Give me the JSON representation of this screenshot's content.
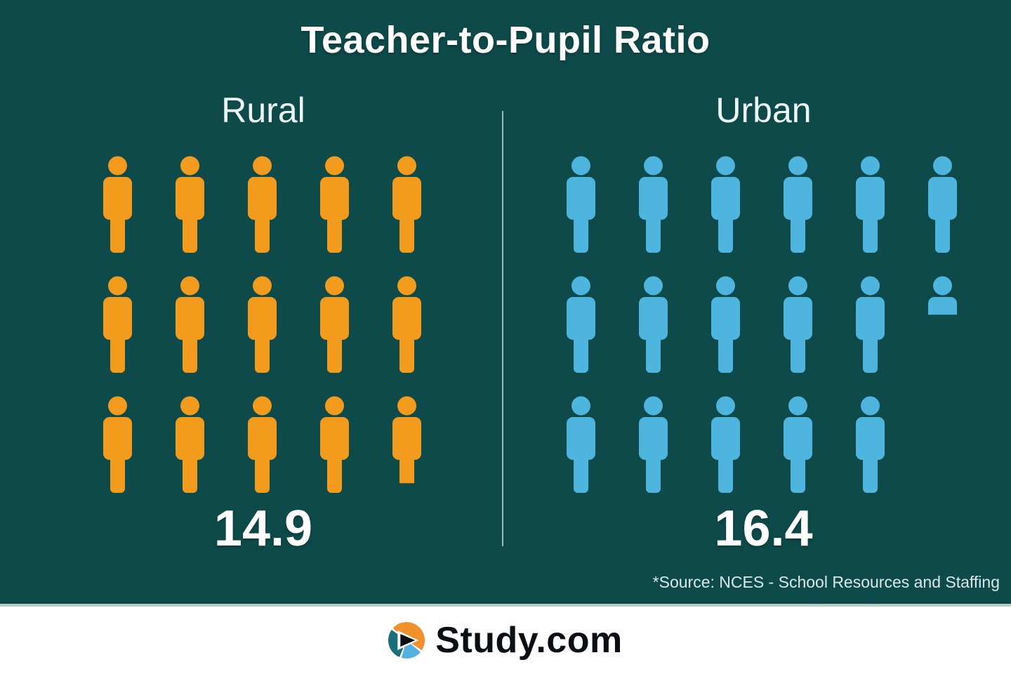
{
  "title": "Teacher-to-Pupil Ratio",
  "source_note": "*Source: NCES - School Resources and Staffing",
  "brand": {
    "name": "Study.com"
  },
  "colors": {
    "background": "#0e4a4a",
    "rural_accent": "#f39b1d",
    "urban_accent": "#4db5de",
    "text": "#ffffff",
    "divider": "#b9cdcd",
    "logo_teal": "#1b6f7b",
    "logo_orange": "#f0912d",
    "logo_blue": "#56b0e0"
  },
  "chart_data": {
    "type": "pictogram",
    "title": "Teacher-to-Pupil Ratio",
    "unit_icon": "person-icon",
    "icons_per_unit": 1,
    "legend_position": "none",
    "series": [
      {
        "name": "Rural",
        "value": 14.9,
        "value_label": "14.9",
        "color": "#f39b1d",
        "rows": [
          [
            1,
            1,
            1,
            1,
            1
          ],
          [
            1,
            1,
            1,
            1,
            1
          ],
          [
            1,
            1,
            1,
            1,
            0.9
          ]
        ]
      },
      {
        "name": "Urban",
        "value": 16.4,
        "value_label": "16.4",
        "color": "#4db5de",
        "rows": [
          [
            1,
            1,
            1,
            1,
            1,
            1
          ],
          [
            1,
            1,
            1,
            1,
            1,
            0.4
          ],
          [
            1,
            1,
            1,
            1,
            1
          ]
        ]
      }
    ],
    "source": "*Source: NCES - School Resources and Staffing"
  }
}
